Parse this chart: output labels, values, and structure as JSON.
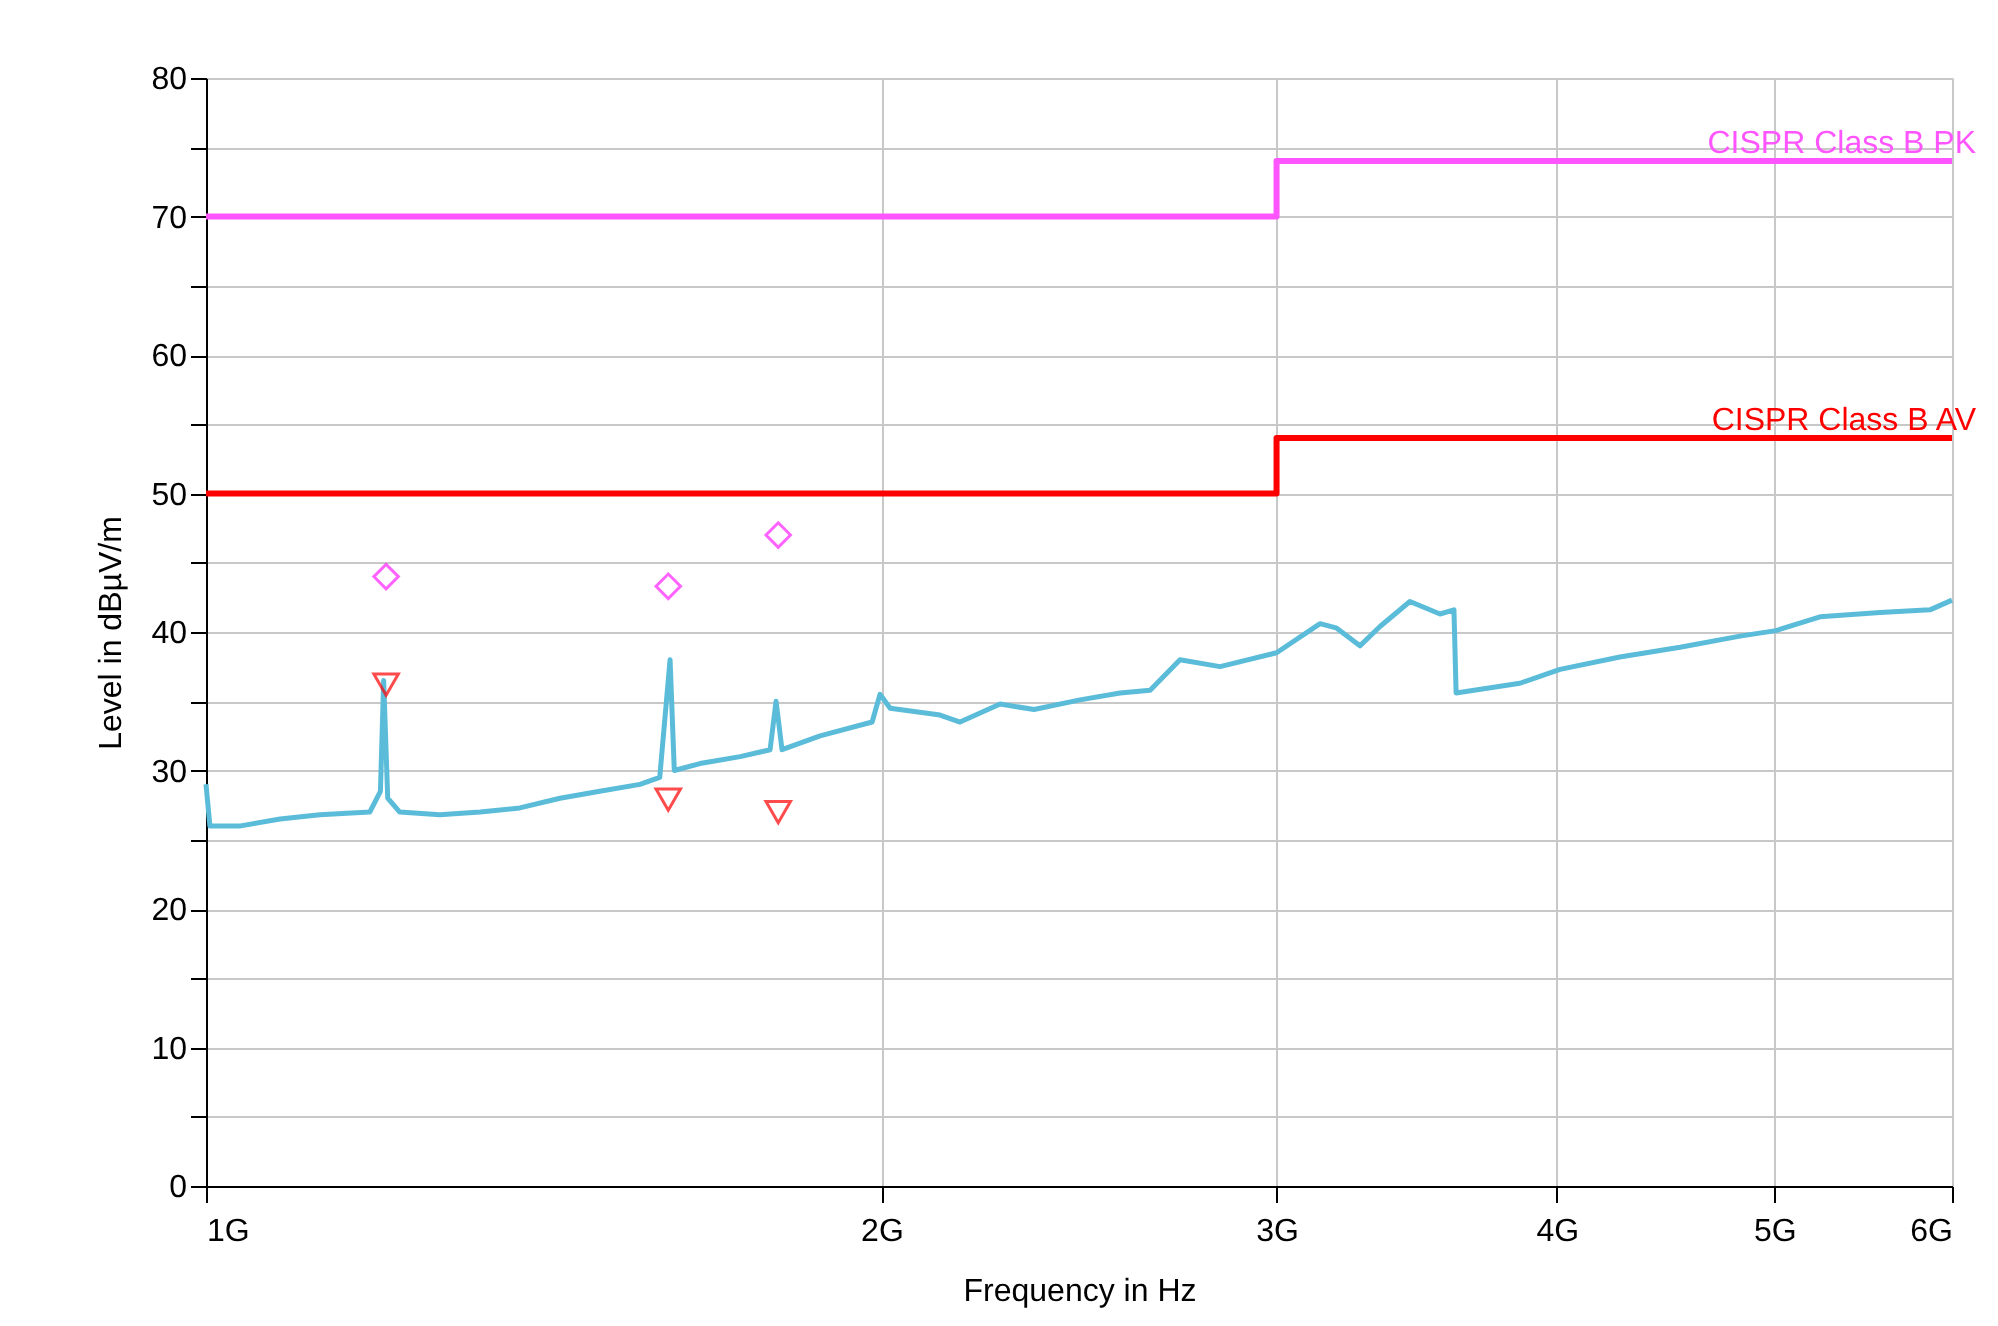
{
  "chart_data": {
    "type": "line",
    "xlabel": "Frequency in Hz",
    "ylabel": "Level in dBµV/m",
    "log": "x",
    "grid": true,
    "xlim": [
      1,
      6
    ],
    "xticks": [
      {
        "value": 1,
        "label": "1G"
      },
      {
        "value": 2,
        "label": "2G"
      },
      {
        "value": 3,
        "label": "3G"
      },
      {
        "value": 4,
        "label": "4G"
      },
      {
        "value": 5,
        "label": "5G"
      },
      {
        "value": 6,
        "label": "6G"
      }
    ],
    "ylim": [
      0,
      80
    ],
    "yticks": [
      0,
      {
        "value": 5,
        "label": null
      },
      10,
      {
        "value": 15,
        "label": null
      },
      20,
      {
        "value": 25,
        "label": null
      },
      30,
      {
        "value": 35,
        "label": null
      },
      40,
      {
        "value": 45,
        "label": null
      },
      50,
      {
        "value": 55,
        "label": null
      },
      60,
      {
        "value": 65,
        "label": null
      },
      70,
      {
        "value": 75,
        "label": null
      },
      80
    ],
    "series": [
      {
        "color": "#5bbcd9",
        "marker": "none",
        "x": [
          1.0,
          1.004,
          1.036,
          1.079,
          1.124,
          1.183,
          1.196,
          1.2,
          1.205,
          1.22,
          1.271,
          1.325,
          1.38,
          1.438,
          1.498,
          1.561,
          1.593,
          1.61,
          1.617,
          1.66,
          1.73,
          1.784,
          1.795,
          1.806,
          1.878,
          1.981,
          1.997,
          2.018,
          2.124,
          2.168,
          2.259,
          2.339,
          2.452,
          2.555,
          2.635,
          2.717,
          2.831,
          3.0,
          3.137,
          3.189,
          3.268,
          3.336,
          3.44,
          3.548,
          3.599,
          3.607,
          3.851,
          4.013,
          4.267,
          4.539,
          4.827,
          5.008,
          5.24,
          5.573,
          5.866,
          6.0
        ],
        "values": [
          29,
          26,
          26,
          26.5,
          26.8,
          27,
          28.5,
          36.5,
          28,
          27,
          26.8,
          27,
          27.3,
          28,
          28.5,
          29,
          29.5,
          38,
          30,
          30.5,
          31,
          31.5,
          35,
          31.5,
          32.5,
          33.5,
          35.5,
          34.5,
          34,
          33.5,
          34.8,
          34.4,
          35.1,
          35.6,
          35.8,
          38,
          37.5,
          38.5,
          40.6,
          40.3,
          39,
          40.4,
          42.2,
          41.3,
          41.6,
          35.6,
          36.3,
          37.3,
          38.2,
          38.9,
          39.7,
          40.1,
          41.1,
          41.4,
          41.6,
          42.3
        ]
      },
      {
        "type": "step",
        "name": "CISPR Class B PK",
        "color": "#ff55ff",
        "marker": "none",
        "x": [
          1,
          3,
          6
        ],
        "values": [
          70,
          74,
          74
        ]
      },
      {
        "type": "step",
        "name": "CISPR Class B AV",
        "color": "#ff0000",
        "marker": "none",
        "x": [
          1,
          3,
          6
        ],
        "values": [
          50,
          54,
          54
        ]
      },
      {
        "type": "scatter",
        "color": "#ff22ff",
        "marker": "diamond",
        "x": [
          1.203,
          1.607,
          1.799
        ],
        "values": [
          44,
          43.3,
          47
        ]
      },
      {
        "type": "scatter",
        "color": "#ff0000",
        "marker": "triangle",
        "x": [
          1.203,
          1.607,
          1.799
        ],
        "values": [
          36.2,
          27.9,
          27.0
        ]
      }
    ]
  }
}
